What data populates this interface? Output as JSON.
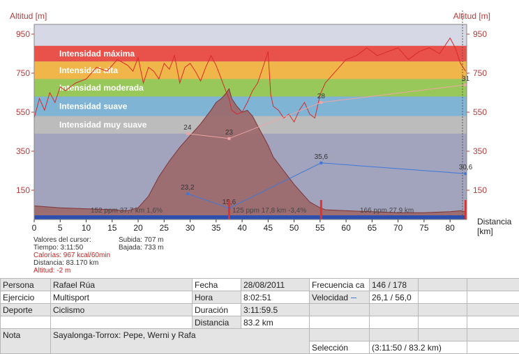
{
  "chart_data": {
    "type": "area",
    "ylabel_left": "Altitud [m]",
    "ylabel_right": "Altitud [m]",
    "xlabel": "Distancia\n[km]",
    "xlim": [
      0,
      83.2
    ],
    "ylim": [
      0,
      1000
    ],
    "x_ticks": [
      0,
      5,
      10,
      15,
      20,
      25,
      30,
      35,
      40,
      45,
      50,
      55,
      60,
      65,
      70,
      75,
      80
    ],
    "y_ticks": [
      150,
      350,
      550,
      750,
      950
    ],
    "zones": [
      {
        "label": "Intensidad máxima",
        "from": 810,
        "to": 890,
        "color": "#e8524a"
      },
      {
        "label": "Intensidad alta",
        "from": 720,
        "to": 810,
        "color": "#f1b64a"
      },
      {
        "label": "Intensidad moderada",
        "from": 630,
        "to": 720,
        "color": "#98c85a"
      },
      {
        "label": "Intensidad suave",
        "from": 530,
        "to": 630,
        "color": "#7fb4d4"
      },
      {
        "label": "Intensidad muy suave",
        "from": 440,
        "to": 530,
        "color": "#bcbcbc"
      }
    ],
    "altitude": {
      "x": [
        0,
        5,
        10,
        15,
        18,
        20,
        22,
        24,
        26,
        28,
        30,
        32,
        34,
        35,
        36,
        37,
        37.5,
        38,
        39,
        40,
        41,
        42,
        43,
        44,
        45,
        46,
        48,
        50,
        52,
        53,
        54,
        55,
        56,
        60,
        65,
        70,
        75,
        80,
        82,
        83
      ],
      "y": [
        70,
        60,
        55,
        50,
        45,
        60,
        120,
        220,
        300,
        370,
        430,
        490,
        560,
        600,
        620,
        650,
        670,
        620,
        580,
        550,
        560,
        530,
        480,
        430,
        380,
        320,
        250,
        180,
        120,
        90,
        75,
        60,
        50,
        45,
        40,
        35,
        35,
        40,
        45,
        40
      ]
    },
    "heart_rate": {
      "x": [
        0,
        1,
        2,
        3,
        4,
        5,
        6,
        8,
        10,
        12,
        14,
        16,
        18,
        19,
        20,
        21,
        22,
        23,
        24,
        25,
        26,
        27,
        28,
        29,
        30,
        31,
        32,
        33,
        34,
        35,
        36,
        37,
        37.5,
        38,
        39,
        40,
        41,
        42,
        43,
        44,
        45,
        45.5,
        46,
        47,
        48,
        49,
        50,
        51,
        52,
        53,
        54,
        55,
        56,
        58,
        60,
        62,
        64,
        66,
        68,
        70,
        72,
        74,
        76,
        78,
        80,
        81,
        82,
        83
      ],
      "y": [
        520,
        620,
        560,
        650,
        600,
        680,
        660,
        700,
        720,
        780,
        760,
        820,
        790,
        760,
        830,
        700,
        780,
        760,
        720,
        800,
        770,
        840,
        700,
        780,
        800,
        760,
        710,
        780,
        840,
        790,
        720,
        650,
        620,
        560,
        540,
        550,
        600,
        660,
        700,
        780,
        860,
        640,
        580,
        560,
        520,
        540,
        500,
        560,
        600,
        540,
        520,
        640,
        700,
        760,
        820,
        840,
        880,
        840,
        860,
        880,
        820,
        860,
        880,
        850,
        930,
        880,
        800,
        760
      ]
    },
    "heart_rate_laps": {
      "x": [
        29.5,
        37.5,
        55.2,
        83
      ],
      "y": [
        440,
        415,
        600,
        690
      ],
      "labels": [
        "24",
        "23",
        "28",
        "31"
      ]
    },
    "speed_laps": {
      "x": [
        29.5,
        37.5,
        55.2,
        83
      ],
      "y": [
        132,
        58,
        290,
        235
      ],
      "labels": [
        "23,2",
        "15,6",
        "35,6",
        "30,6"
      ]
    },
    "laps": [
      {
        "x": 37.5,
        "y": 0
      },
      {
        "x": 55.2,
        "y": 0
      },
      {
        "x": 83,
        "y": 0
      }
    ],
    "lap_annotations": [
      "152 ppm 37,7 km 1,6%",
      "125 ppm 17,8 km -3,4%",
      "166 ppm 27,9 km"
    ],
    "colors": {
      "heart_rate": "#d82a2a",
      "altitude_fill": "#9c6a6c",
      "altitude_line": "#7a2a2a",
      "hr_laps": "#f0a4a4",
      "speed": "#3e78d8",
      "plot_bg": "#a2a3bd",
      "axis_text": "#b83a3a",
      "baseline": "#2c4fb0",
      "lap_marker": "#e03030"
    }
  },
  "cursor_info": {
    "title": "Valores del cursor:",
    "tiempo": "Tiempo: 3:11:50",
    "calorias": "Calorías: 967 kcal/60min",
    "distancia": "Distancia: 83.170 km",
    "altitud": "Altitud: -2 m",
    "subida": "Subida: 707 m",
    "bajada": "Bajada: 733 m"
  },
  "info_table": {
    "persona_label": "Persona",
    "persona": "Rafael Rúa",
    "ejercicio_label": "Ejercicio",
    "ejercicio": "Multisport",
    "deporte_label": "Deporte",
    "deporte": "Ciclismo",
    "nota_label": "Nota",
    "nota": "Sayalonga-Torrox: Pepe, Werni y Rafa",
    "fecha_label": "Fecha",
    "fecha": "28/08/2011",
    "hora_label": "Hora",
    "hora": "8:02:51",
    "duracion_label": "Duración",
    "duracion": "3:11:59.5",
    "distancia_label": "Distancia",
    "distancia": "83.2 km",
    "frecuencia_label": "Frecuencia ca",
    "frecuencia": "146 / 178",
    "velocidad_label": "Velocidad",
    "velocidad": "26,1 / 56,0",
    "seleccion_label": "Selección",
    "seleccion": "(3:11:50 / 83.2 km)"
  }
}
